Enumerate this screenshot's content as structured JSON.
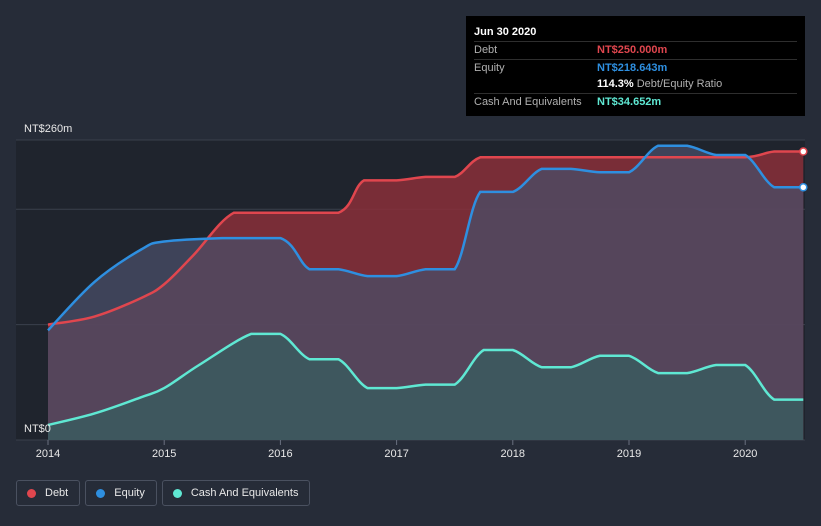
{
  "chart_data": {
    "type": "area",
    "title": "",
    "xlabel": "",
    "ylabel": "",
    "unit": "NT$m",
    "xlim": [
      2014,
      2020.5
    ],
    "ylim": [
      0,
      260
    ],
    "x_ticks": [
      "2014",
      "2015",
      "2016",
      "2017",
      "2018",
      "2019",
      "2020"
    ],
    "y_tick_labels": {
      "top": "NT$260m",
      "bottom": "NT$0"
    },
    "grid": true,
    "series": [
      {
        "name": "Debt",
        "color": "#e0464e",
        "points": [
          [
            2014,
            100
          ],
          [
            2014.4,
            107
          ],
          [
            2014.8,
            123
          ],
          [
            2015,
            135
          ],
          [
            2015.25,
            160
          ],
          [
            2015.6,
            197
          ],
          [
            2015.95,
            197
          ],
          [
            2016.0,
            197
          ],
          [
            2016.5,
            197
          ],
          [
            2016.72,
            225
          ],
          [
            2017.0,
            225
          ],
          [
            2017.25,
            228
          ],
          [
            2017.5,
            228
          ],
          [
            2017.72,
            245
          ],
          [
            2018.0,
            245
          ],
          [
            2019.0,
            245
          ],
          [
            2019.5,
            245
          ],
          [
            2020.0,
            245
          ],
          [
            2020.25,
            250
          ],
          [
            2020.5,
            250
          ]
        ]
      },
      {
        "name": "Equity",
        "color": "#2e8fe0",
        "points": [
          [
            2014,
            95
          ],
          [
            2014.4,
            137
          ],
          [
            2014.8,
            165
          ],
          [
            2015,
            172
          ],
          [
            2015.5,
            175
          ],
          [
            2016.0,
            175
          ],
          [
            2016.25,
            148
          ],
          [
            2016.5,
            148
          ],
          [
            2016.75,
            142
          ],
          [
            2017.0,
            142
          ],
          [
            2017.25,
            148
          ],
          [
            2017.5,
            148
          ],
          [
            2017.72,
            215
          ],
          [
            2018.0,
            215
          ],
          [
            2018.25,
            235
          ],
          [
            2018.5,
            235
          ],
          [
            2018.75,
            232
          ],
          [
            2019.0,
            232
          ],
          [
            2019.25,
            255
          ],
          [
            2019.5,
            255
          ],
          [
            2019.75,
            247
          ],
          [
            2020.0,
            247
          ],
          [
            2020.25,
            219
          ],
          [
            2020.5,
            219
          ]
        ]
      },
      {
        "name": "Cash And Equivalents",
        "color": "#5fe8d3",
        "points": [
          [
            2014,
            13
          ],
          [
            2014.4,
            23
          ],
          [
            2014.8,
            37
          ],
          [
            2015,
            45
          ],
          [
            2015.3,
            65
          ],
          [
            2015.75,
            92
          ],
          [
            2016.0,
            92
          ],
          [
            2016.25,
            70
          ],
          [
            2016.5,
            70
          ],
          [
            2016.75,
            45
          ],
          [
            2017.0,
            45
          ],
          [
            2017.25,
            48
          ],
          [
            2017.5,
            48
          ],
          [
            2017.75,
            78
          ],
          [
            2018.0,
            78
          ],
          [
            2018.25,
            63
          ],
          [
            2018.5,
            63
          ],
          [
            2018.75,
            73
          ],
          [
            2019.0,
            73
          ],
          [
            2019.25,
            58
          ],
          [
            2019.5,
            58
          ],
          [
            2019.75,
            65
          ],
          [
            2020.0,
            65
          ],
          [
            2020.25,
            35
          ],
          [
            2020.5,
            35
          ]
        ]
      }
    ]
  },
  "tooltip": {
    "date": "Jun 30 2020",
    "debt_label": "Debt",
    "debt_value": "NT$250.000m",
    "equity_label": "Equity",
    "equity_value": "NT$218.643m",
    "ratio_pct": "114.3%",
    "ratio_label": "Debt/Equity Ratio",
    "cash_label": "Cash And Equivalents",
    "cash_value": "NT$34.652m"
  },
  "legend": [
    {
      "label": "Debt",
      "color": "#e0464e"
    },
    {
      "label": "Equity",
      "color": "#2e8fe0"
    },
    {
      "label": "Cash And Equivalents",
      "color": "#5fe8d3"
    }
  ],
  "colors": {
    "background": "#262c38",
    "plot_background": "#1f242d",
    "debt_fill": "#8a2f3a",
    "equity_fill": "#4a4e68",
    "cash_fill": "#3b5a5f"
  }
}
